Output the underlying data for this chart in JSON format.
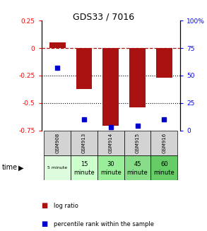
{
  "title": "GDS33 / 7016",
  "samples": [
    "GSM908",
    "GSM913",
    "GSM914",
    "GSM915",
    "GSM916"
  ],
  "time_labels_line1": [
    "5 minute",
    "15",
    "30",
    "45",
    "60"
  ],
  "time_labels_line2": [
    "",
    "minute",
    "minute",
    "minute",
    "minute"
  ],
  "time_colors": [
    "#ddfcdd",
    "#ccffcc",
    "#99ee99",
    "#88dd88",
    "#66cc66"
  ],
  "log_ratio": [
    0.05,
    -0.37,
    -0.71,
    -0.54,
    -0.27
  ],
  "percentile_rank": [
    57,
    10,
    3,
    4,
    10
  ],
  "bar_color": "#aa1111",
  "point_color": "#0000cc",
  "ylim_left": [
    -0.75,
    0.25
  ],
  "ylim_right": [
    0,
    100
  ],
  "ylabel_left_ticks": [
    0.25,
    0,
    -0.25,
    -0.5,
    -0.75
  ],
  "ylabel_right_ticks": [
    100,
    75,
    50,
    25,
    0
  ],
  "dotted_lines": [
    -0.25,
    -0.5
  ],
  "legend_log": "log ratio",
  "legend_pct": "percentile rank within the sample",
  "time_label": "time"
}
